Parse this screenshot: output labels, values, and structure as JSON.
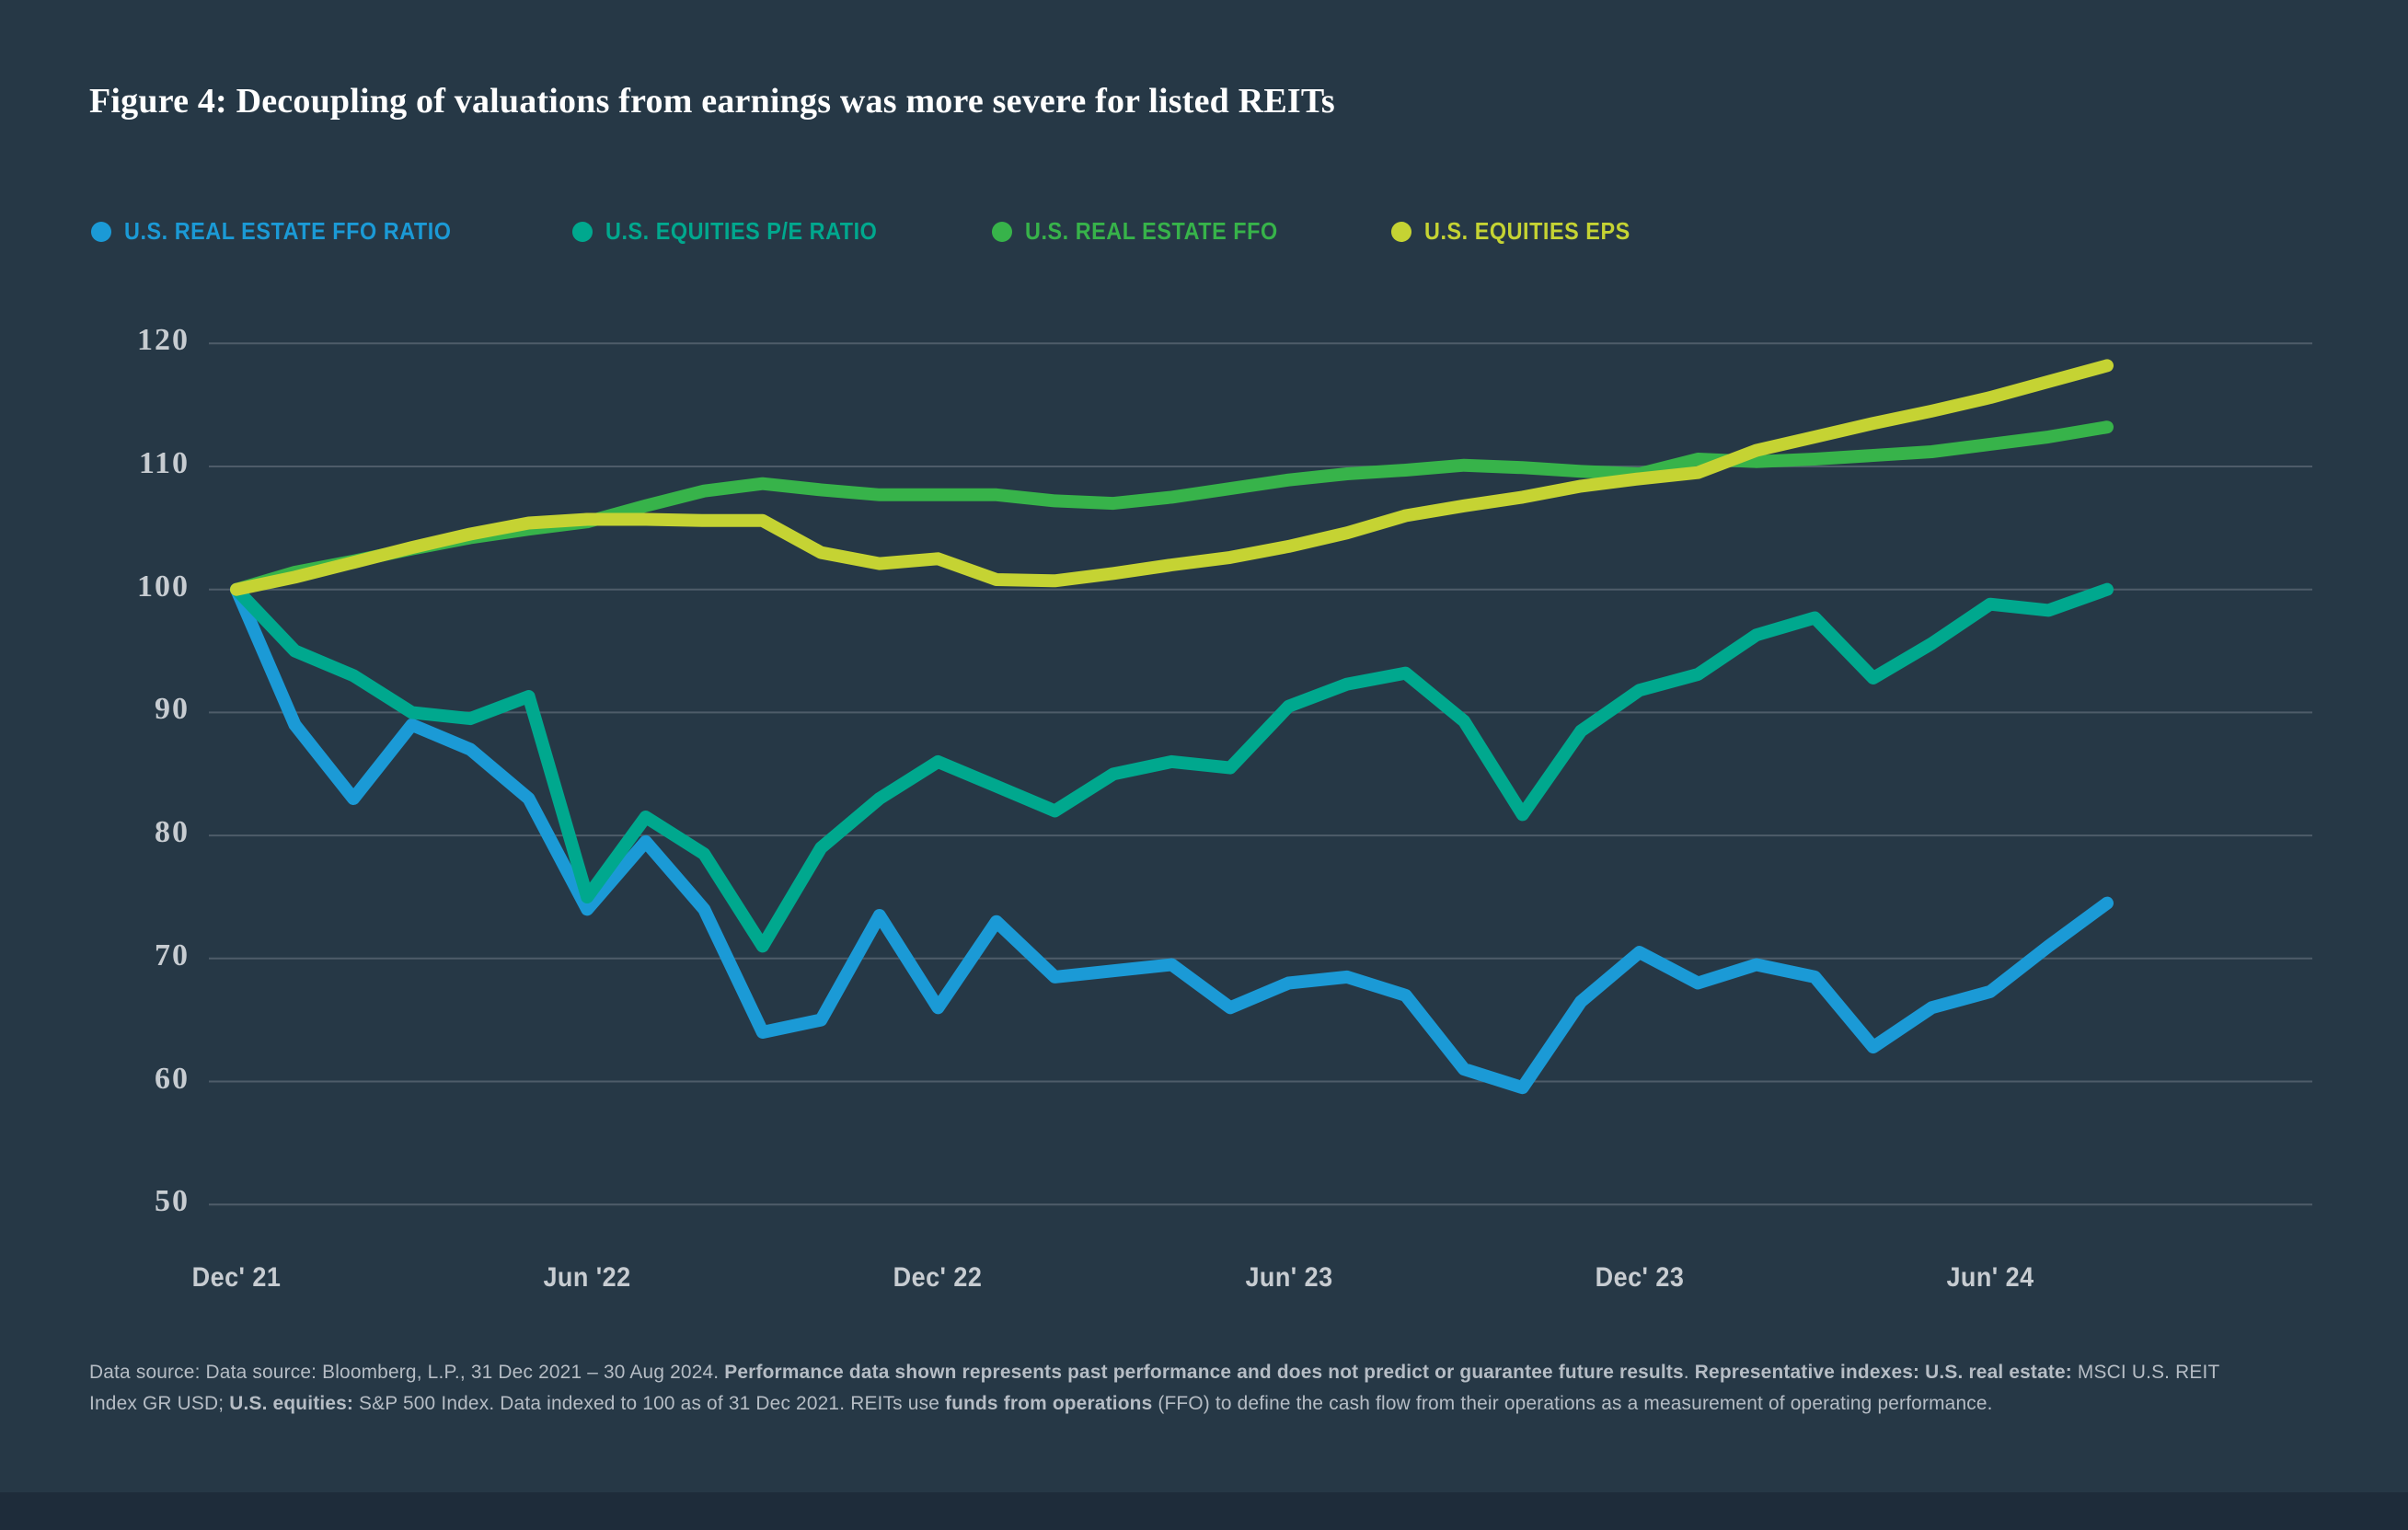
{
  "title": "Figure 4: Decoupling of valuations from earnings was more severe for listed REITs",
  "colors": {
    "background": "#263846",
    "bottom_strip": "#1e2c3a",
    "gridline": "#4e5c69",
    "axis_label": "#c7ccd1",
    "footer_text": "#b6bdc5",
    "title_text": "#ffffff",
    "real_estate_ffo_ratio": "#1b9ad6",
    "equities_pe_ratio": "#00a88e",
    "real_estate_ffo": "#37b34a",
    "equities_eps": "#c5d333"
  },
  "legend": [
    {
      "label": "U.S. REAL ESTATE FFO RATIO",
      "color": "#1b9ad6"
    },
    {
      "label": "U.S. EQUITIES P/E RATIO",
      "color": "#00a88e"
    },
    {
      "label": "U.S. REAL ESTATE FFO",
      "color": "#37b34a"
    },
    {
      "label": "U.S. EQUITIES EPS",
      "color": "#c5d333"
    }
  ],
  "chart_data": {
    "type": "line",
    "title": "Figure 4: Decoupling of valuations from earnings was more severe for listed REITs",
    "x": [
      "Dec 2021",
      "Jan 2022",
      "Feb 2022",
      "Mar 2022",
      "Apr 2022",
      "May 2022",
      "Jun 2022",
      "Jul 2022",
      "Aug 2022",
      "Sep 2022",
      "Oct 2022",
      "Nov 2022",
      "Dec 2022",
      "Jan 2023",
      "Feb 2023",
      "Mar 2023",
      "Apr 2023",
      "May 2023",
      "Jun 2023",
      "Jul 2023",
      "Aug 2023",
      "Sep 2023",
      "Oct 2023",
      "Nov 2023",
      "Dec 2023",
      "Jan 2024",
      "Feb 2024",
      "Mar 2024",
      "Apr 2024",
      "May 2024",
      "Jun 2024",
      "Jul 2024",
      "Aug 2024"
    ],
    "x_tick_labels": [
      {
        "index": 0,
        "label": "Dec' 21"
      },
      {
        "index": 6,
        "label": "Jun '22"
      },
      {
        "index": 12,
        "label": "Dec' 22"
      },
      {
        "index": 18,
        "label": "Jun' 23"
      },
      {
        "index": 24,
        "label": "Dec' 23"
      },
      {
        "index": 30,
        "label": "Jun' 24"
      }
    ],
    "ylim": [
      50,
      120
    ],
    "ytick_step": 10,
    "ytick_labels": [
      "50",
      "60",
      "70",
      "80",
      "90",
      "100",
      "110",
      "120"
    ],
    "grid": "horizontal",
    "legend_position": "top",
    "data_indexed_to": 100,
    "series": [
      {
        "name": "U.S. REAL ESTATE FFO RATIO",
        "color": "#1b9ad6",
        "values": [
          100,
          89,
          83,
          89,
          87,
          83,
          74,
          79.5,
          74,
          64,
          65,
          73.5,
          66,
          73,
          68.5,
          69,
          69.5,
          66,
          68,
          68.5,
          67,
          61,
          59.5,
          66.5,
          70.5,
          68,
          69.5,
          68.5,
          62.8,
          66,
          67.3,
          71,
          74.5
        ]
      },
      {
        "name": "U.S. EQUITIES P/E RATIO",
        "color": "#00a88e",
        "values": [
          100,
          95,
          93,
          90,
          89.5,
          91.3,
          75,
          81.5,
          78.5,
          71,
          79,
          83,
          86,
          84,
          82,
          85,
          86,
          85.5,
          90.5,
          92.3,
          93.2,
          89.3,
          81.7,
          88.5,
          91.8,
          93.1,
          96.3,
          97.7,
          92.8,
          95.6,
          98.8,
          98.3,
          100
        ]
      },
      {
        "name": "U.S. REAL ESTATE FFO",
        "color": "#37b34a",
        "values": [
          100,
          101.4,
          102.3,
          103.3,
          104.2,
          104.9,
          105.5,
          106.8,
          108,
          108.6,
          108.1,
          107.7,
          107.7,
          107.7,
          107.2,
          107,
          107.5,
          108.2,
          108.9,
          109.4,
          109.7,
          110.1,
          109.9,
          109.6,
          109.4,
          110.6,
          110.4,
          110.6,
          110.9,
          111.2,
          111.8,
          112.4,
          113.2
        ]
      },
      {
        "name": "U.S. EQUITIES EPS",
        "color": "#c5d333",
        "values": [
          100,
          101,
          102.2,
          103.4,
          104.5,
          105.4,
          105.7,
          105.7,
          105.6,
          105.6,
          103,
          102.1,
          102.5,
          100.8,
          100.7,
          101.3,
          102,
          102.6,
          103.5,
          104.6,
          106,
          106.8,
          107.5,
          108.4,
          109,
          109.5,
          111.3,
          112.4,
          113.5,
          114.5,
          115.6,
          116.9,
          118.2
        ]
      }
    ]
  },
  "footer": {
    "segments": [
      {
        "text": "Data source: Data source: Bloomberg, L.P., 31 Dec 2021 – 30 Aug 2024. ",
        "bold": false
      },
      {
        "text": "Performance data shown represents past performance and does not predict or guarantee future results",
        "bold": true
      },
      {
        "text": ". ",
        "bold": false
      },
      {
        "text": "Representative indexes: U.S. real estate:",
        "bold": true
      },
      {
        "text": " MSCI U.S. REIT Index GR USD; ",
        "bold": false
      },
      {
        "text": "U.S. equities:",
        "bold": true
      },
      {
        "text": " S&P 500 Index. Data indexed to 100 as of 31 Dec 2021. REITs use ",
        "bold": false
      },
      {
        "text": "funds from operations",
        "bold": true
      },
      {
        "text": " (FFO) to define the cash flow from their operations as a measurement of operating performance.",
        "bold": false
      }
    ]
  }
}
